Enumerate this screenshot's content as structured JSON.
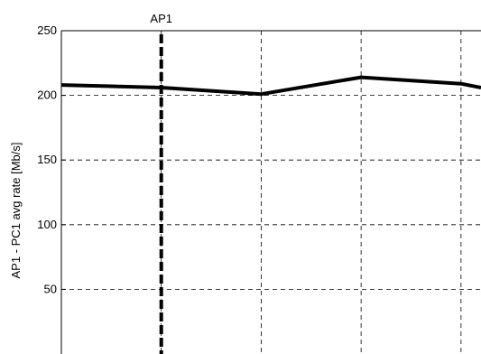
{
  "chart_data": {
    "type": "line",
    "title": "",
    "xlabel": "",
    "ylabel": "AP1 - PC1 avg rate [Mb/s]",
    "ylim": [
      0,
      250
    ],
    "xlim": [
      0,
      4.2
    ],
    "yticks": [
      50,
      100,
      150,
      200,
      250
    ],
    "vgrid_x": [
      1,
      2,
      3,
      4
    ],
    "grid": true,
    "series": [
      {
        "x": [
          0,
          1,
          2,
          3,
          4,
          4.2
        ],
        "values": [
          208,
          206,
          201,
          214,
          209,
          206
        ],
        "color": "#000000"
      }
    ],
    "annotations": [
      {
        "text": "AP1",
        "x": 1,
        "style": "thick-dashed-vertical"
      }
    ]
  }
}
